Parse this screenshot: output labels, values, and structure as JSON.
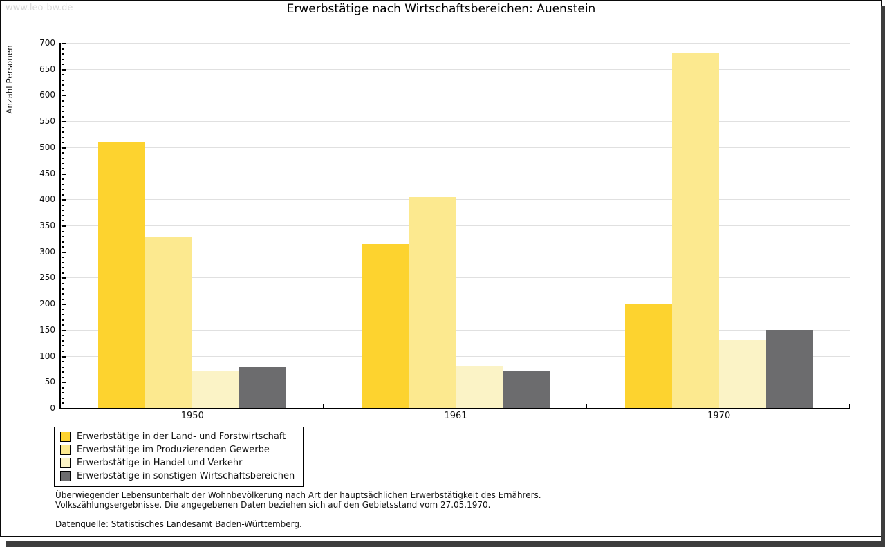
{
  "watermark": "www.leo-bw.de",
  "title": "Erwerbstätige nach Wirtschaftsbereichen: Auenstein",
  "chart_data": {
    "type": "bar",
    "title": "Erwerbstätige nach Wirtschaftsbereichen: Auenstein",
    "xlabel": "",
    "ylabel": "Anzahl Personen",
    "ylim": [
      0,
      700
    ],
    "ytick_step": 50,
    "minor_tick_step": 10,
    "grid": true,
    "legend_position": "bottom-left",
    "categories": [
      "1950",
      "1961",
      "1970"
    ],
    "series": [
      {
        "name": "Erwerbstätige in der Land- und Forstwirtschaft",
        "color": "#FDD32F",
        "values": [
          509,
          314,
          200
        ]
      },
      {
        "name": "Erwerbstätige im Produzierenden Gewerbe",
        "color": "#FCE98F",
        "values": [
          328,
          404,
          680
        ]
      },
      {
        "name": "Erwerbstätige in Handel und Verkehr",
        "color": "#FBF3C6",
        "values": [
          72,
          81,
          130
        ]
      },
      {
        "name": "Erwerbstätige in sonstigen Wirtschaftsbereichen",
        "color": "#6C6C6E",
        "values": [
          80,
          72,
          150
        ]
      }
    ]
  },
  "footnote": {
    "line1": "Überwiegender Lebensunterhalt der Wohnbevölkerung nach Art der hauptsächlichen Erwerbstätigkeit des Ernährers.",
    "line2": "Volkszählungsergebnisse. Die angegebenen Daten beziehen sich auf den Gebietsstand vom 27.05.1970.",
    "source": "Datenquelle: Statistisches Landesamt Baden-Württemberg."
  }
}
